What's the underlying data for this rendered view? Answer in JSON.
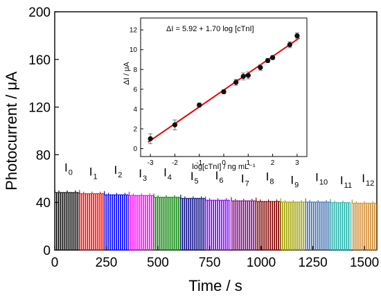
{
  "chart_data": [
    {
      "type": "line",
      "xlabel": "Time / s",
      "ylabel": "Photocurrent / μA",
      "xlim": [
        0,
        1560
      ],
      "ylim": [
        0,
        200
      ],
      "xticks": [
        0,
        250,
        500,
        750,
        1000,
        1250,
        1500
      ],
      "yticks": [
        0,
        40,
        80,
        120,
        160,
        200
      ],
      "baseline": 0,
      "segments": [
        {
          "label": "I",
          "sub": "0",
          "color": "#000000",
          "start": 0,
          "end": 120,
          "peak": 48.5
        },
        {
          "label": "I",
          "sub": "1",
          "color": "#ff0000",
          "start": 120,
          "end": 240,
          "peak": 47.5
        },
        {
          "label": "I",
          "sub": "2",
          "color": "#0000ff",
          "start": 240,
          "end": 360,
          "peak": 46.5
        },
        {
          "label": "I",
          "sub": "3",
          "color": "#ff00ff",
          "start": 360,
          "end": 480,
          "peak": 46
        },
        {
          "label": "I",
          "sub": "4",
          "color": "#008000",
          "start": 480,
          "end": 610,
          "peak": 44.5
        },
        {
          "label": "I",
          "sub": "5",
          "color": "#000080",
          "start": 610,
          "end": 730,
          "peak": 43.5
        },
        {
          "label": "I",
          "sub": "6",
          "color": "#8000ff",
          "start": 730,
          "end": 855,
          "peak": 42
        },
        {
          "label": "I",
          "sub": "7",
          "color": "#800080",
          "start": 855,
          "end": 975,
          "peak": 41.5
        },
        {
          "label": "I",
          "sub": "8",
          "color": "#800000",
          "start": 975,
          "end": 1095,
          "peak": 41
        },
        {
          "label": "I",
          "sub": "9",
          "color": "#a0a000",
          "start": 1095,
          "end": 1215,
          "peak": 40.5
        },
        {
          "label": "I",
          "sub": "10",
          "color": "#3a6fb0",
          "start": 1215,
          "end": 1335,
          "peak": 40.5
        },
        {
          "label": "I",
          "sub": "11",
          "color": "#20b0a8",
          "start": 1335,
          "end": 1440,
          "peak": 40
        },
        {
          "label": "I",
          "sub": "12",
          "color": "#d08a30",
          "start": 1440,
          "end": 1560,
          "peak": 39.5
        }
      ]
    },
    {
      "type": "scatter",
      "equation": "ΔI = 5.92 + 1.70 log [cTnI]",
      "xlabel": "log[cTnI] / ng mL⁻¹",
      "ylabel": "ΔI / μA",
      "xlim": [
        -3.4,
        3.4
      ],
      "ylim": [
        -0.8,
        13.2
      ],
      "xticks": [
        -3,
        -2,
        -1,
        0,
        1,
        2,
        3
      ],
      "yticks": [
        0,
        2,
        4,
        6,
        8,
        10,
        12
      ],
      "fit": {
        "intercept": 5.92,
        "slope": 1.7,
        "color": "#ee0000"
      },
      "points": [
        {
          "x": -3,
          "y": 1.0,
          "err": 0.5
        },
        {
          "x": -2,
          "y": 2.4,
          "err": 0.5
        },
        {
          "x": -1,
          "y": 4.4,
          "err": 0.2
        },
        {
          "x": 0,
          "y": 5.75,
          "err": 0.2
        },
        {
          "x": 0.5,
          "y": 6.7,
          "err": 0.3
        },
        {
          "x": 0.8,
          "y": 7.3,
          "err": 0.35
        },
        {
          "x": 1.0,
          "y": 7.4,
          "err": 0.35
        },
        {
          "x": 1.5,
          "y": 8.2,
          "err": 0.3
        },
        {
          "x": 1.8,
          "y": 8.9,
          "err": 0.2
        },
        {
          "x": 2.0,
          "y": 9.2,
          "err": 0.2
        },
        {
          "x": 2.7,
          "y": 10.5,
          "err": 0.3
        },
        {
          "x": 3.0,
          "y": 11.4,
          "err": 0.3
        }
      ]
    }
  ]
}
